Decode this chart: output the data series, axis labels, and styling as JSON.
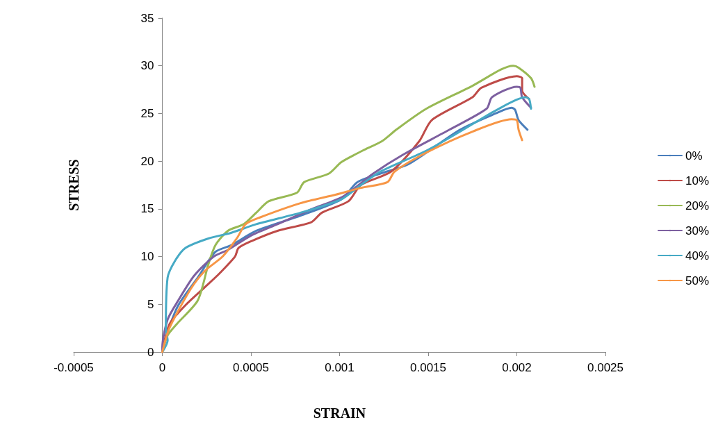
{
  "chart_data": {
    "type": "line",
    "xlabel": "STRAIN",
    "ylabel": "STRESS",
    "xlim": [
      -0.0005,
      0.0025
    ],
    "ylim": [
      0,
      35
    ],
    "xticks": [
      -0.0005,
      0,
      0.0005,
      0.001,
      0.0015,
      0.002,
      0.0025
    ],
    "yticks": [
      0,
      5,
      10,
      15,
      20,
      25,
      30,
      35
    ],
    "legend": "right",
    "marker": "none",
    "series": [
      {
        "name": "0%",
        "color": "#4a7ebb",
        "x": [
          0,
          3e-05,
          9e-05,
          0.0002,
          0.0003,
          0.00039,
          0.00053,
          0.00078,
          0.00101,
          0.0011,
          0.00123,
          0.00139,
          0.00168,
          0.00188,
          0.00197,
          0.00199,
          0.00201,
          0.00206
        ],
        "values": [
          0,
          2.1,
          4.9,
          7.8,
          10.5,
          11.2,
          12.7,
          14.3,
          16.0,
          17.8,
          18.7,
          19.7,
          23.3,
          25.0,
          25.6,
          25.4,
          24.3,
          23.3
        ]
      },
      {
        "name": "10%",
        "color": "#be4b48",
        "x": [
          0,
          4e-05,
          0.00013,
          0.00024,
          0.00031,
          0.00041,
          0.00043,
          0.0005,
          0.00065,
          0.00084,
          0.0009,
          0.00105,
          0.00112,
          0.00129,
          0.00145,
          0.00152,
          0.00175,
          0.0018,
          0.002,
          0.00203,
          0.00203,
          0.00207
        ],
        "values": [
          0,
          2.9,
          4.9,
          6.8,
          8.0,
          10.0,
          10.9,
          11.6,
          12.7,
          13.6,
          14.6,
          15.8,
          17.5,
          18.9,
          22.1,
          24.3,
          26.7,
          27.7,
          28.9,
          28.7,
          27.4,
          26.5
        ]
      },
      {
        "name": "20%",
        "color": "#98b954",
        "x": [
          0,
          3e-05,
          8e-05,
          0.0002,
          0.00026,
          0.0003,
          0.00037,
          0.00046,
          0.00053,
          0.0006,
          0.00076,
          0.0008,
          0.00094,
          0.00101,
          0.00113,
          0.00124,
          0.00132,
          0.00149,
          0.00175,
          0.00191,
          0.00198,
          0.00201,
          0.00208,
          0.0021
        ],
        "values": [
          0,
          1.75,
          2.9,
          5.4,
          9.2,
          11.2,
          12.7,
          13.4,
          14.6,
          15.8,
          16.7,
          17.8,
          18.7,
          19.9,
          21.1,
          22.1,
          23.3,
          25.5,
          27.9,
          29.6,
          30.0,
          29.8,
          28.7,
          27.8
        ]
      },
      {
        "name": "30%",
        "color": "#7d60a0",
        "x": [
          0,
          0,
          3e-05,
          9e-05,
          0.00018,
          0.00029,
          0.00037,
          0.0005,
          0.00065,
          0.00086,
          0.00102,
          0.00119,
          0.00136,
          0.00162,
          0.00183,
          0.00186,
          0.002,
          0.00202,
          0.00203,
          0.00208
        ],
        "values": [
          0,
          0.5,
          3.4,
          5.4,
          8.0,
          10.0,
          10.7,
          12.2,
          13.4,
          15.1,
          16.3,
          18.7,
          20.7,
          23.3,
          25.5,
          26.7,
          27.8,
          27.7,
          26.7,
          25.6
        ]
      },
      {
        "name": "40%",
        "color": "#46aac5",
        "x": [
          0,
          3e-05,
          2e-05,
          3e-05,
          7e-05,
          0.00013,
          0.00026,
          0.00039,
          0.00053,
          0.00078,
          0.00101,
          0.00112,
          0.00123,
          0.00149,
          0.00168,
          0.00188,
          0.00205,
          0.00207,
          0.00208
        ],
        "values": [
          0,
          1.2,
          2.5,
          7.8,
          9.5,
          10.9,
          11.9,
          12.5,
          13.4,
          14.6,
          16.0,
          17.5,
          18.9,
          21.1,
          23.1,
          25.3,
          26.7,
          26.5,
          25.5
        ]
      },
      {
        "name": "50%",
        "color": "#f79646",
        "x": [
          0,
          4e-05,
          0.00016,
          0.00024,
          0.00034,
          0.00042,
          0.00047,
          0.00055,
          0.00078,
          0.00098,
          0.00112,
          0.00127,
          0.00131,
          0.00149,
          0.00175,
          0.00197,
          0.002,
          0.00201,
          0.00203
        ],
        "values": [
          0,
          2.5,
          6.6,
          8.5,
          10.0,
          11.9,
          13.4,
          14.1,
          15.6,
          16.5,
          17.2,
          17.8,
          18.9,
          20.9,
          23.1,
          24.4,
          24.3,
          23.3,
          22.2
        ]
      }
    ]
  }
}
